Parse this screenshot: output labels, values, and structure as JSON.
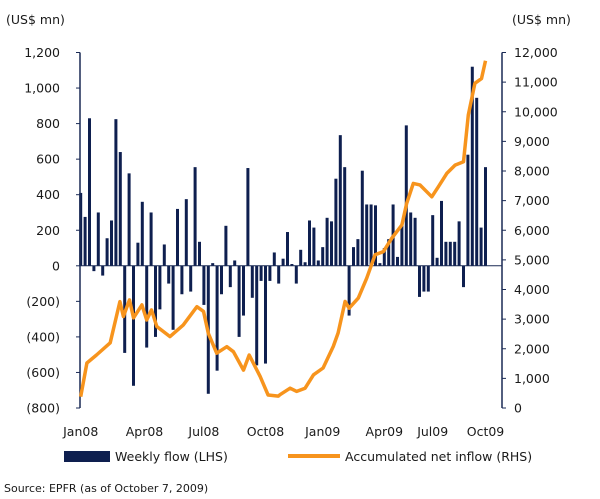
{
  "chart_data": {
    "type": "bar+line",
    "left_unit_label": "(US$ mn)",
    "right_unit_label": "(US$ mn)",
    "left_axis": {
      "min": -800,
      "max": 1200,
      "ticks": [
        1200,
        1000,
        800,
        600,
        400,
        200,
        0,
        -200,
        -400,
        -600,
        -800
      ],
      "tick_labels": [
        "1,200",
        "1,000",
        "800",
        "600",
        "400",
        "200",
        "0",
        "(200)",
        "(400)",
        "(600)",
        "(800)"
      ]
    },
    "right_axis": {
      "min": 0,
      "max": 12000,
      "ticks": [
        12000,
        11000,
        10000,
        9000,
        8000,
        7000,
        6000,
        5000,
        4000,
        3000,
        2000,
        1000,
        0
      ],
      "tick_labels": [
        "12,000",
        "11,000",
        "10,000",
        "9,000",
        "8,000",
        "7,000",
        "6,000",
        "5,000",
        "4,000",
        "3,000",
        "2,000",
        "1,000",
        "0"
      ]
    },
    "x_tick_labels": [
      {
        "label": "Jan08",
        "week": 0
      },
      {
        "label": "Apr08",
        "week": 14.5
      },
      {
        "label": "Jul08",
        "week": 28
      },
      {
        "label": "Oct08",
        "week": 42
      },
      {
        "label": "Jan09",
        "week": 55
      },
      {
        "label": "Apr09",
        "week": 69
      },
      {
        "label": "Jul09",
        "week": 80
      },
      {
        "label": "Oct09",
        "week": 92
      }
    ],
    "series": [
      {
        "name": "Weekly flow (LHS)",
        "type": "bar",
        "axis": "left",
        "color": "#0e1f4f",
        "values": [
          410,
          275,
          830,
          -30,
          300,
          -55,
          155,
          255,
          825,
          640,
          -490,
          520,
          -675,
          130,
          360,
          -460,
          300,
          -400,
          -245,
          120,
          -100,
          -360,
          320,
          -160,
          375,
          -145,
          555,
          135,
          -220,
          -720,
          15,
          -590,
          -160,
          225,
          -120,
          30,
          -400,
          -280,
          550,
          -180,
          -560,
          -85,
          -550,
          -85,
          75,
          -100,
          40,
          190,
          10,
          -100,
          90,
          20,
          255,
          215,
          30,
          105,
          270,
          250,
          490,
          735,
          555,
          -280,
          105,
          150,
          535,
          345,
          345,
          340,
          15,
          100,
          150,
          345,
          50,
          230,
          790,
          300,
          270,
          -175,
          -145,
          -145,
          285,
          45,
          365,
          135,
          135,
          135,
          250,
          -120,
          625,
          1120,
          945,
          215,
          555
        ]
      },
      {
        "name": "Accumulated net inflow (RHS)",
        "type": "line",
        "axis": "right",
        "color": "#f7941d",
        "points": [
          [
            0,
            380
          ],
          [
            1.4,
            1520
          ],
          [
            3.6,
            1790
          ],
          [
            6.7,
            2200
          ],
          [
            8.9,
            3590
          ],
          [
            9.7,
            3090
          ],
          [
            11.1,
            3650
          ],
          [
            12,
            3040
          ],
          [
            13.9,
            3480
          ],
          [
            15,
            2970
          ],
          [
            16.1,
            3310
          ],
          [
            17.3,
            2750
          ],
          [
            20.3,
            2410
          ],
          [
            23.3,
            2800
          ],
          [
            26.4,
            3420
          ],
          [
            27.9,
            3260
          ],
          [
            29,
            2520
          ],
          [
            30.9,
            1850
          ],
          [
            33.2,
            2070
          ],
          [
            34.7,
            1900
          ],
          [
            37,
            1280
          ],
          [
            38.3,
            1790
          ],
          [
            40.8,
            1060
          ],
          [
            42.6,
            440
          ],
          [
            44.9,
            400
          ],
          [
            45.3,
            450
          ],
          [
            47.6,
            670
          ],
          [
            49.1,
            560
          ],
          [
            51,
            670
          ],
          [
            52.9,
            1120
          ],
          [
            55.1,
            1350
          ],
          [
            57.4,
            2080
          ],
          [
            58.5,
            2530
          ],
          [
            60.1,
            3600
          ],
          [
            61,
            3370
          ],
          [
            63.1,
            3710
          ],
          [
            65,
            4380
          ],
          [
            66.9,
            5170
          ],
          [
            68.8,
            5280
          ],
          [
            70.7,
            5730
          ],
          [
            73,
            6180
          ],
          [
            74.1,
            6910
          ],
          [
            75.6,
            7580
          ],
          [
            77.1,
            7530
          ],
          [
            79.8,
            7130
          ],
          [
            81.3,
            7470
          ],
          [
            83.2,
            7920
          ],
          [
            85.1,
            8200
          ],
          [
            87,
            8310
          ],
          [
            88.1,
            9890
          ],
          [
            89.6,
            10960
          ],
          [
            91.1,
            11120
          ],
          [
            92,
            11720
          ]
        ]
      }
    ],
    "legend": [
      "Weekly flow (LHS)",
      "Accumulated net inflow (RHS)"
    ],
    "legend_placement": "bottom",
    "grid": false
  },
  "source": "Source: EPFR (as of October 7, 2009)"
}
